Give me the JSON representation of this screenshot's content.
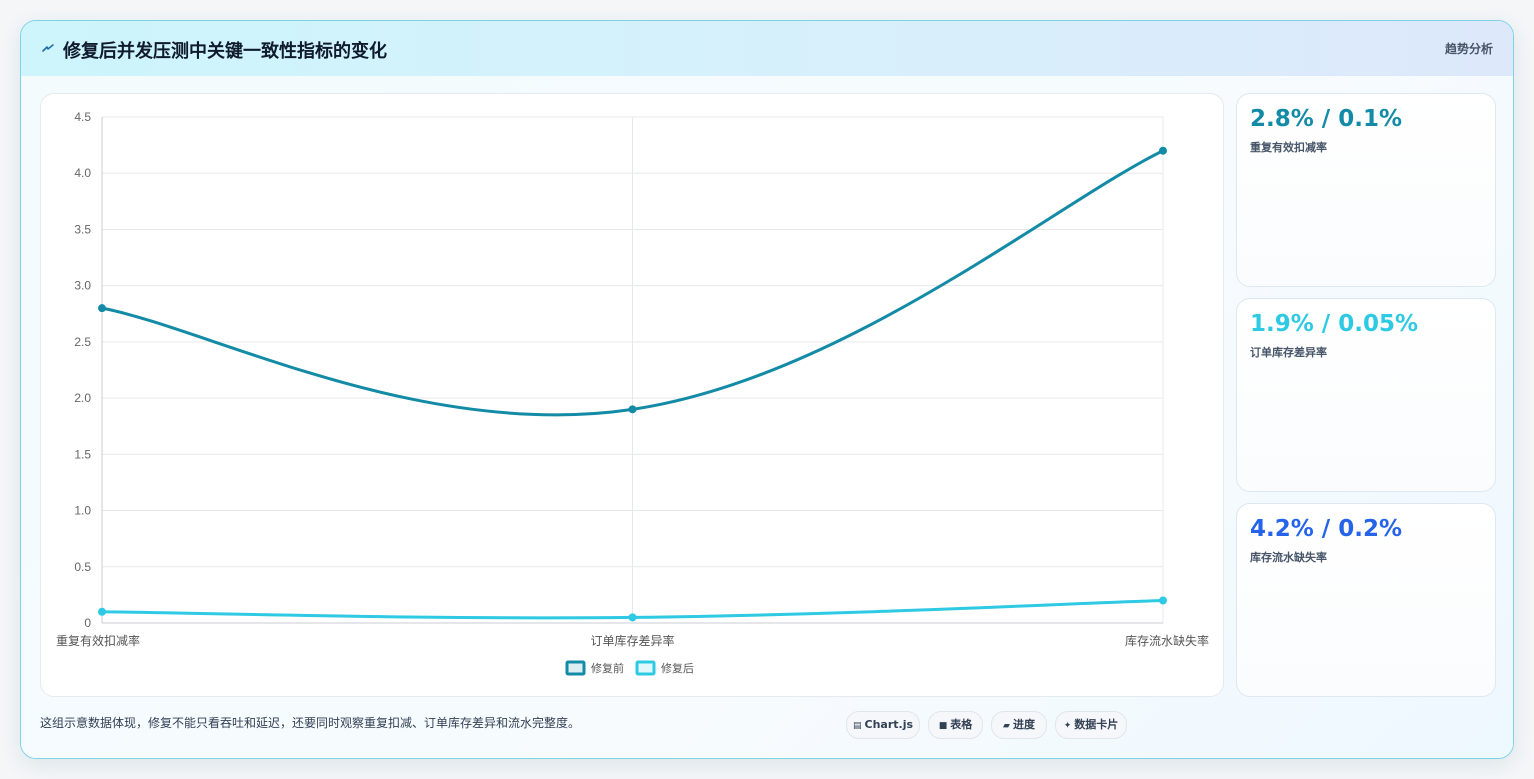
{
  "header": {
    "title": "修复后并发压测中关键一致性指标的变化",
    "tag": "趋势分析"
  },
  "chart_data": {
    "type": "line",
    "title": "",
    "xlabel": "",
    "ylabel": "",
    "categories": [
      "重复有效扣减率",
      "订单库存差异率",
      "库存流水缺失率"
    ],
    "series": [
      {
        "name": "修复前",
        "values": [
          2.8,
          1.9,
          4.2
        ],
        "color": "#138ba6"
      },
      {
        "name": "修复后",
        "values": [
          0.1,
          0.05,
          0.2
        ],
        "color": "#2ec9e3"
      }
    ],
    "ylim": [
      0,
      4.5
    ],
    "yticks": [
      "0",
      "0.5",
      "1.0",
      "1.5",
      "2.0",
      "2.5",
      "3.0",
      "3.5",
      "4.0",
      "4.5"
    ],
    "grid": true,
    "legend": "bottom"
  },
  "stats": [
    {
      "value": "2.8% / 0.1%",
      "label": "重复有效扣减率",
      "color": "#138ba6"
    },
    {
      "value": "1.9% / 0.05%",
      "label": "订单库存差异率",
      "color": "#2ec9e3"
    },
    {
      "value": "4.2% / 0.2%",
      "label": "库存流水缺失率",
      "color": "#2563eb"
    }
  ],
  "footnote": "这组示意数据体现，修复不能只看吞吐和延迟，还要同时观察重复扣减、订单库存差异和流水完整度。",
  "chips": [
    {
      "icon": "chart-icon",
      "glyph": "▤",
      "label": "Chart.js"
    },
    {
      "icon": "table-icon",
      "glyph": "■",
      "label": "表格"
    },
    {
      "icon": "progress-icon",
      "glyph": "▰",
      "label": "进度"
    },
    {
      "icon": "cards-icon",
      "glyph": "✦",
      "label": "数据卡片"
    }
  ]
}
